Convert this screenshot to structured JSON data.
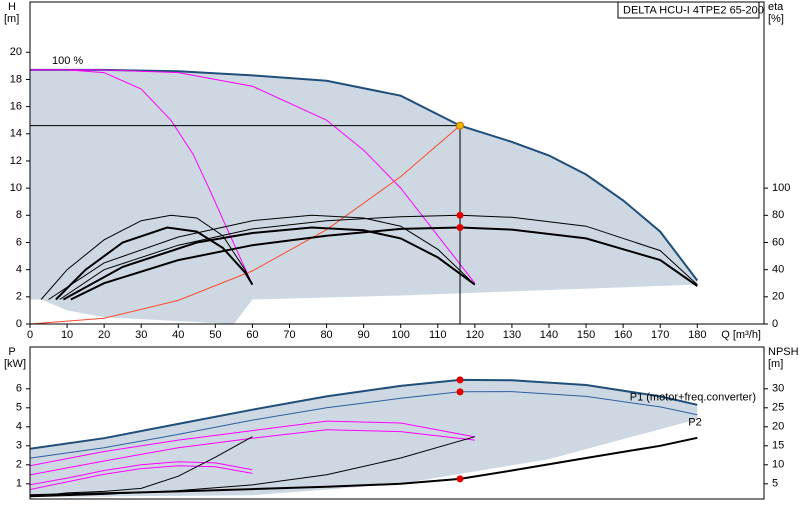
{
  "chart_data": [
    {
      "type": "line",
      "title": "DELTA HCU-I 4TPE2 65-200",
      "ylabel": "H",
      "yunit": "[m]",
      "y2label": "eta",
      "y2unit": "[%]",
      "xlabel": "Q [m³/h]",
      "xlim": [
        0,
        198
      ],
      "ylim": [
        0,
        23.7
      ],
      "y2lim": [
        0,
        237
      ],
      "xticks": [
        0,
        10,
        20,
        30,
        40,
        50,
        60,
        70,
        80,
        90,
        100,
        110,
        120,
        130,
        140,
        150,
        160,
        170,
        180
      ],
      "yticks": [
        0,
        2,
        4,
        6,
        8,
        10,
        12,
        14,
        16,
        18,
        20
      ],
      "y2ticks": [
        0,
        20,
        40,
        60,
        80,
        100
      ],
      "grid": false,
      "region": {
        "color": "#cdd8e3",
        "x": [
          0,
          20,
          40,
          60,
          80,
          100,
          116,
          130,
          140,
          150,
          160,
          170,
          180,
          180,
          140,
          100,
          60,
          55,
          20,
          10,
          3,
          0
        ],
        "y": [
          18.7,
          18.7,
          18.6,
          18.3,
          17.9,
          16.8,
          14.6,
          13.4,
          12.4,
          11.0,
          9.1,
          6.8,
          3.2,
          2.9,
          2.5,
          2.1,
          1.8,
          0,
          0.5,
          1.0,
          1.8,
          1.8
        ]
      },
      "series": [
        {
          "name": "100 %",
          "color": "#1f4e79",
          "line": "thick",
          "x": [
            0,
            20,
            40,
            60,
            80,
            100,
            116,
            130,
            140,
            150,
            160,
            170,
            180
          ],
          "values": [
            18.7,
            18.7,
            18.6,
            18.3,
            17.9,
            16.8,
            14.6,
            13.4,
            12.4,
            11.0,
            9.1,
            6.8,
            3.2
          ]
        },
        {
          "color": "#ff00ff",
          "line": "thin",
          "x": [
            0,
            10,
            20,
            30,
            38,
            44,
            48.6,
            54,
            60
          ],
          "values": [
            18.7,
            18.7,
            18.5,
            17.3,
            15.0,
            12.5,
            9.8,
            6.5,
            2.9
          ]
        },
        {
          "color": "#ff00ff",
          "line": "thin",
          "x": [
            0,
            20,
            40,
            60,
            80,
            90,
            100,
            110,
            120
          ],
          "values": [
            18.7,
            18.7,
            18.5,
            17.5,
            15.0,
            12.8,
            10.0,
            6.5,
            3.0
          ]
        },
        {
          "color": "#ff4a2a",
          "line": "thin",
          "x": [
            0,
            20,
            40,
            60,
            80,
            100,
            116
          ],
          "values": [
            0,
            0.43,
            1.74,
            3.91,
            6.94,
            10.85,
            14.6
          ]
        },
        {
          "color": "#000000",
          "line": "thin",
          "axis": "y2",
          "x": [
            8,
            20,
            40,
            60,
            80,
            100,
            116,
            130,
            150,
            170,
            180
          ],
          "values": [
            18,
            40,
            58,
            70,
            76,
            79,
            80,
            78.5,
            72,
            54,
            29
          ]
        },
        {
          "color": "#000000",
          "line": "thick",
          "axis": "y2",
          "x": [
            11,
            20,
            40,
            60,
            80,
            100,
            116,
            130,
            150,
            170,
            180
          ],
          "values": [
            18,
            30,
            47,
            58,
            65,
            70,
            71,
            69.5,
            63,
            47,
            28
          ]
        },
        {
          "color": "#000000",
          "line": "thin",
          "axis": "y2",
          "x": [
            5,
            20,
            40,
            60,
            76,
            90,
            100,
            110,
            120
          ],
          "values": [
            18,
            45,
            64,
            76,
            80,
            78,
            72,
            55,
            29
          ]
        },
        {
          "color": "#000000",
          "line": "thick",
          "axis": "y2",
          "x": [
            9,
            25,
            45,
            60,
            76,
            90,
            100,
            110,
            120
          ],
          "values": [
            18,
            42,
            60,
            67,
            71,
            69,
            63,
            49,
            29
          ]
        },
        {
          "color": "#000000",
          "line": "thin",
          "axis": "y2",
          "x": [
            3,
            10,
            20,
            30,
            38,
            45,
            52,
            58,
            60
          ],
          "values": [
            18,
            40,
            62,
            76,
            80,
            78,
            65,
            40,
            29
          ]
        },
        {
          "color": "#000000",
          "line": "thick",
          "axis": "y2",
          "x": [
            7,
            15,
            25,
            37,
            45,
            52,
            58,
            60
          ],
          "values": [
            18,
            40,
            60,
            71,
            68,
            56,
            38,
            29
          ]
        }
      ],
      "points": [
        {
          "x": 116,
          "value": 14.6,
          "color": "#f5b400",
          "guides": true
        },
        {
          "x": 116,
          "value": 80,
          "axis": "y2",
          "color": "#e00000"
        },
        {
          "x": 116,
          "value": 71,
          "axis": "y2",
          "color": "#e00000"
        }
      ]
    },
    {
      "type": "line",
      "ylabel": "P",
      "yunit": "[kW]",
      "y2label": "NPSH",
      "y2unit": "[m]",
      "xlim": [
        0,
        198
      ],
      "ylim": [
        0.2,
        8.2
      ],
      "y2lim": [
        1,
        41
      ],
      "yticks": [
        1,
        2,
        3,
        4,
        5,
        6
      ],
      "y2ticks": [
        5,
        10,
        15,
        20,
        25,
        30
      ],
      "grid": false,
      "region": {
        "color": "#cdd8e3",
        "x": [
          0,
          20,
          40,
          60,
          80,
          100,
          116,
          130,
          150,
          170,
          180,
          180,
          140,
          100,
          60,
          0
        ],
        "y": [
          2.84,
          3.4,
          4.15,
          4.9,
          5.6,
          6.15,
          6.47,
          6.45,
          6.2,
          5.6,
          5.16,
          4.4,
          2.3,
          1.0,
          0.4,
          0.3
        ]
      },
      "series": [
        {
          "name": "P1 (motor+freq.converter)",
          "color": "#1f4e79",
          "line": "thick",
          "x": [
            0,
            20,
            40,
            60,
            80,
            100,
            116,
            130,
            150,
            170,
            180
          ],
          "values": [
            2.84,
            3.4,
            4.15,
            4.9,
            5.6,
            6.15,
            6.47,
            6.45,
            6.2,
            5.6,
            5.16
          ]
        },
        {
          "name": "P2",
          "color": "#2e5fa0",
          "line": "thin",
          "x": [
            0,
            20,
            40,
            60,
            80,
            100,
            116,
            130,
            150,
            170,
            180
          ],
          "values": [
            2.35,
            2.9,
            3.6,
            4.35,
            5.0,
            5.5,
            5.84,
            5.85,
            5.6,
            5.05,
            4.63
          ]
        },
        {
          "color": "#ff00ff",
          "line": "thin",
          "x": [
            0,
            20,
            40,
            60,
            80,
            100,
            120
          ],
          "values": [
            1.95,
            2.7,
            3.3,
            3.8,
            4.3,
            4.2,
            3.47
          ]
        },
        {
          "color": "#ff00ff",
          "line": "thin",
          "x": [
            0,
            20,
            40,
            60,
            80,
            100,
            120
          ],
          "values": [
            1.47,
            2.2,
            2.9,
            3.4,
            3.84,
            3.75,
            3.3
          ]
        },
        {
          "color": "#ff00ff",
          "line": "thin",
          "x": [
            0,
            10,
            20,
            30,
            40,
            50,
            60
          ],
          "values": [
            0.95,
            1.3,
            1.7,
            2.0,
            2.16,
            2.1,
            1.74
          ]
        },
        {
          "color": "#ff00ff",
          "line": "thin",
          "x": [
            0,
            10,
            20,
            30,
            40,
            50,
            60
          ],
          "values": [
            0.7,
            1.1,
            1.5,
            1.8,
            1.95,
            1.9,
            1.55
          ]
        },
        {
          "color": "#000000",
          "line": "thick",
          "axis": "y2",
          "x": [
            0,
            20,
            40,
            60,
            80,
            100,
            116,
            130,
            150,
            170,
            180
          ],
          "values": [
            2.0,
            2.5,
            3.0,
            3.6,
            4.2,
            5.0,
            6.3,
            8.5,
            11.8,
            15.0,
            17.1
          ]
        },
        {
          "color": "#000000",
          "line": "thin",
          "axis": "y2",
          "x": [
            0,
            20,
            40,
            60,
            80,
            100,
            120
          ],
          "values": [
            1.6,
            2.2,
            3.2,
            4.7,
            7.4,
            11.8,
            17.4
          ]
        },
        {
          "color": "#000000",
          "line": "thin",
          "axis": "y2",
          "x": [
            0,
            10,
            20,
            30,
            40,
            50,
            60
          ],
          "values": [
            1.6,
            2.6,
            3.0,
            3.8,
            7.0,
            12.0,
            17.4
          ]
        }
      ],
      "points": [
        {
          "x": 116,
          "value": 6.47,
          "color": "#e00000"
        },
        {
          "x": 116,
          "value": 5.84,
          "color": "#e00000"
        },
        {
          "x": 116,
          "value": 6.3,
          "axis": "y2",
          "color": "#e00000"
        }
      ]
    }
  ]
}
